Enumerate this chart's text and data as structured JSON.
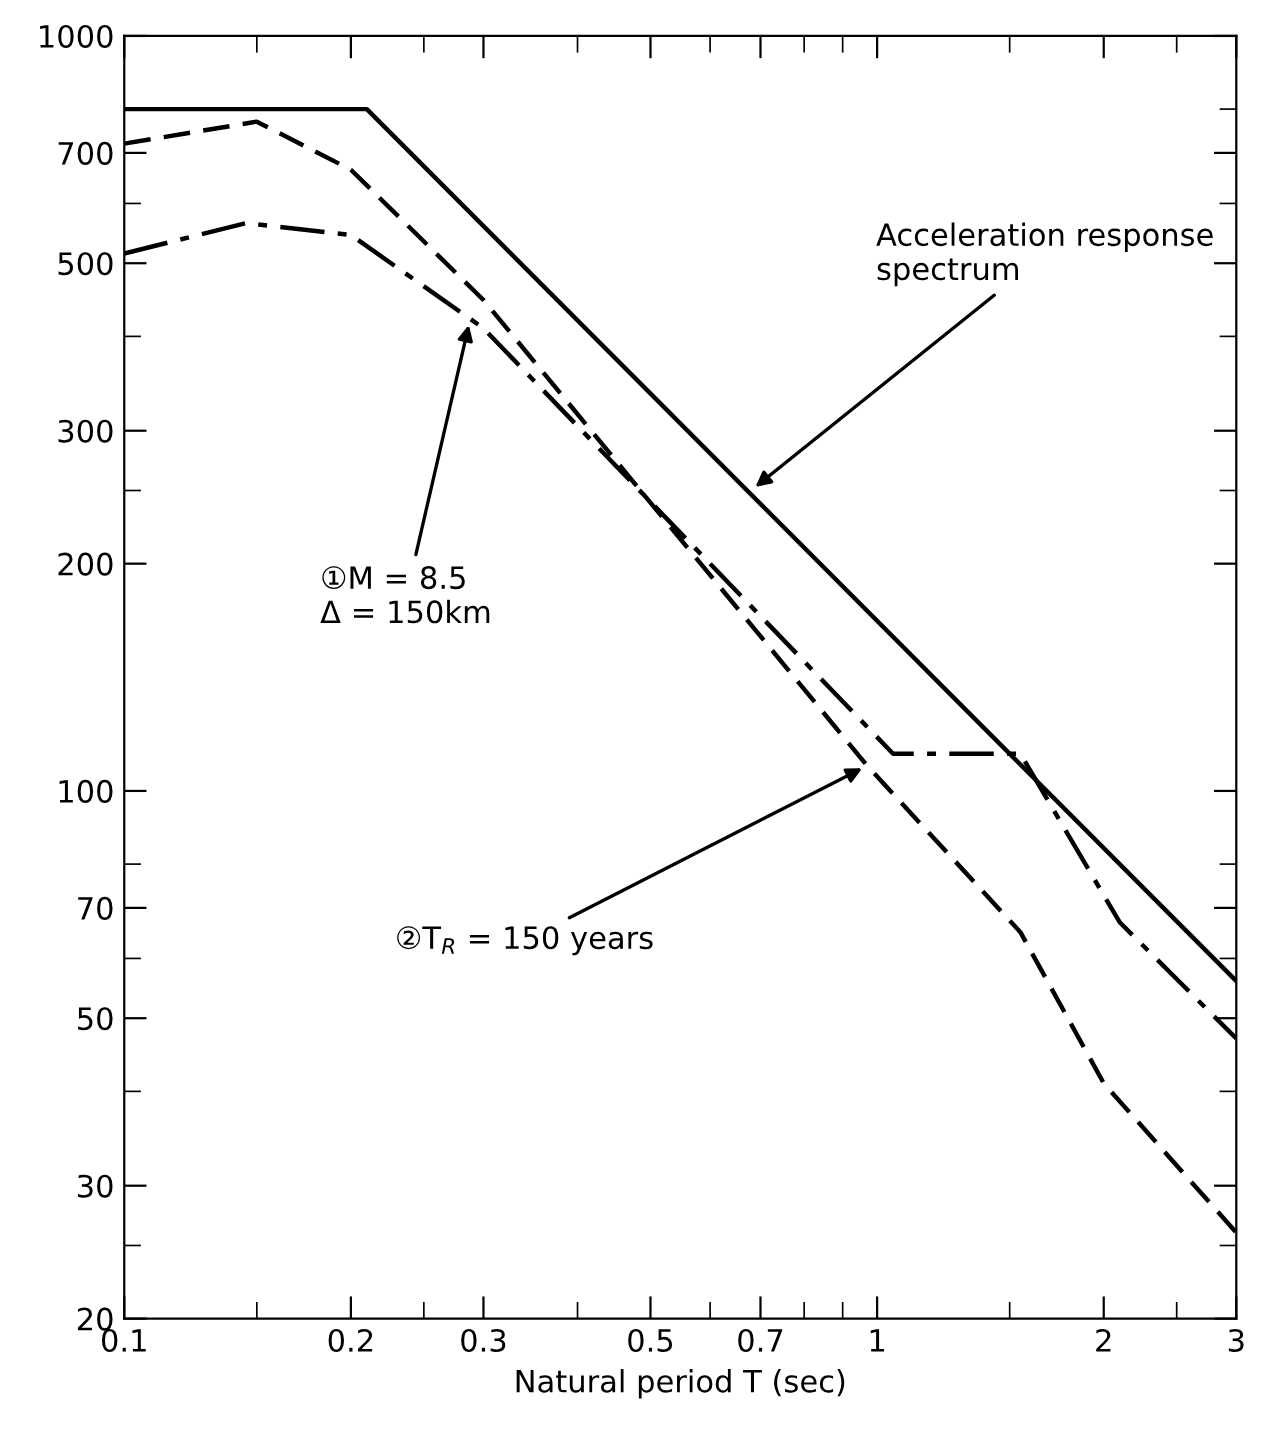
{
  "chart_data": {
    "type": "line",
    "xlabel": "Natural period T (sec)",
    "log": "xy",
    "xlim": [
      0.1,
      3
    ],
    "ylim": [
      20,
      1000
    ],
    "xticks": [
      0.1,
      0.2,
      0.3,
      0.5,
      0.7,
      1,
      2,
      3
    ],
    "yticks": [
      20,
      30,
      50,
      70,
      100,
      200,
      300,
      500,
      700,
      1000
    ],
    "grid": false,
    "series": [
      {
        "color": "#000000",
        "line_style": "solid",
        "x": [
          0.1,
          0.21,
          3
        ],
        "values": [
          800,
          800,
          56
        ]
      },
      {
        "color": "#000000",
        "line_style": "dashed",
        "x": [
          0.1,
          0.15,
          0.2,
          0.3,
          0.97,
          1.55,
          2,
          3
        ],
        "values": [
          720,
          770,
          665,
          447,
          108,
          65,
          41,
          26
        ]
      },
      {
        "color": "#000000",
        "line_style": "dashdot",
        "x": [
          0.1,
          0.145,
          0.2,
          0.3,
          1.05,
          1.55,
          2.1,
          3
        ],
        "values": [
          515,
          565,
          545,
          410,
          112,
          112,
          67,
          47
        ]
      }
    ],
    "annotations": [
      {
        "text": "Acceleration response\nspectrum",
        "x": 0.68,
        "y": 250
      },
      {
        "text": "①M = 8.5\nΔ = 150km",
        "x": 0.288,
        "y": 421
      },
      {
        "text": "②T$_{R}$ = 150 years",
        "x": 0.97,
        "y": 108
      }
    ]
  }
}
